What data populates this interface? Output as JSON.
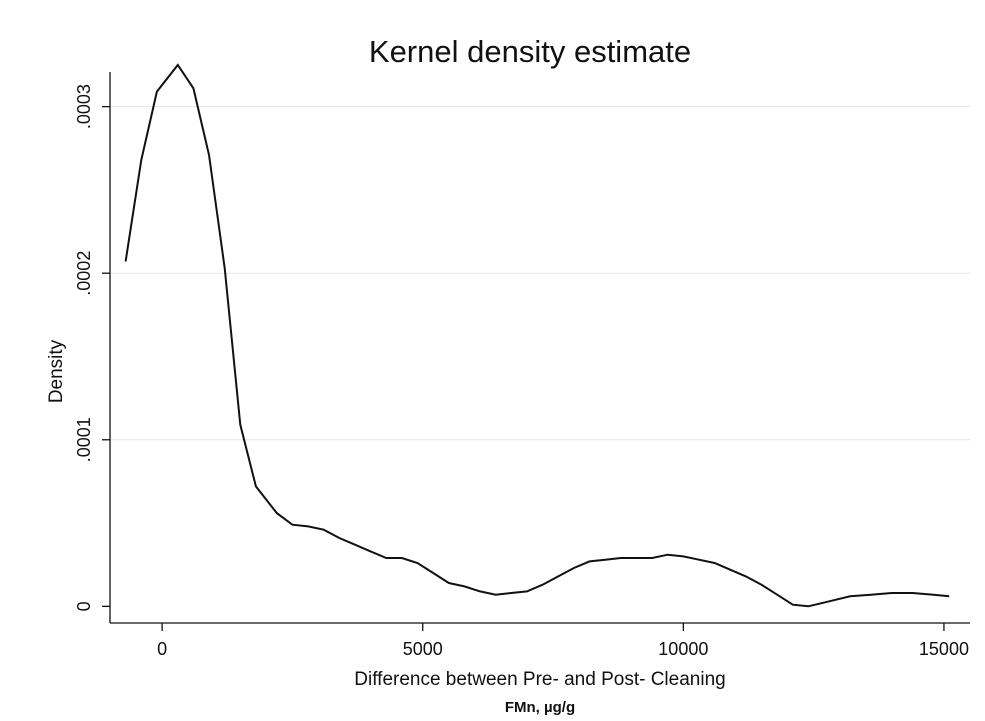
{
  "chart_data": {
    "type": "line",
    "title": "Kernel density estimate",
    "xlabel": "Difference between Pre- and Post- Cleaning",
    "subcaption": "FMn, µg/g",
    "ylabel": "Density",
    "xlim": [
      -1000,
      15500
    ],
    "ylim": [
      -1e-05,
      0.00034
    ],
    "x_ticks": [
      0,
      5000,
      10000,
      15000
    ],
    "x_tick_labels": [
      "0",
      "5000",
      "10000",
      "15000"
    ],
    "y_ticks": [
      0,
      0.0001,
      0.0002,
      0.0003
    ],
    "y_tick_labels": [
      "0",
      ".0001",
      ".0002",
      ".0003"
    ],
    "grid": "horizontal",
    "legend": "none",
    "series": [
      {
        "color": "#111111",
        "x": [
          -700,
          -400,
          -100,
          300,
          600,
          900,
          1200,
          1500,
          1800,
          2200,
          2500,
          2800,
          3100,
          3400,
          3700,
          4000,
          4300,
          4600,
          4900,
          5200,
          5500,
          5800,
          6100,
          6400,
          6700,
          7000,
          7300,
          7600,
          7900,
          8200,
          8500,
          8800,
          9100,
          9400,
          9700,
          10000,
          10300,
          10600,
          10900,
          11200,
          11500,
          11800,
          12100,
          12400,
          12800,
          13200,
          13600,
          14000,
          14400,
          14800,
          15100
        ],
        "y": [
          0.000207,
          0.000268,
          0.000309,
          0.000325,
          0.000311,
          0.000271,
          0.000203,
          0.000109,
          7.2e-05,
          5.6e-05,
          4.9e-05,
          4.8e-05,
          4.6e-05,
          4.1e-05,
          3.7e-05,
          3.3e-05,
          2.9e-05,
          2.9e-05,
          2.6e-05,
          2e-05,
          1.4e-05,
          1.2e-05,
          9e-06,
          7e-06,
          8e-06,
          9e-06,
          1.3e-05,
          1.8e-05,
          2.3e-05,
          2.7e-05,
          2.8e-05,
          2.9e-05,
          2.9e-05,
          2.9e-05,
          3.1e-05,
          3e-05,
          2.8e-05,
          2.6e-05,
          2.2e-05,
          1.8e-05,
          1.3e-05,
          7e-06,
          1e-06,
          0.0,
          3e-06,
          6e-06,
          7e-06,
          8e-06,
          8e-06,
          7e-06,
          6e-06
        ]
      }
    ]
  }
}
